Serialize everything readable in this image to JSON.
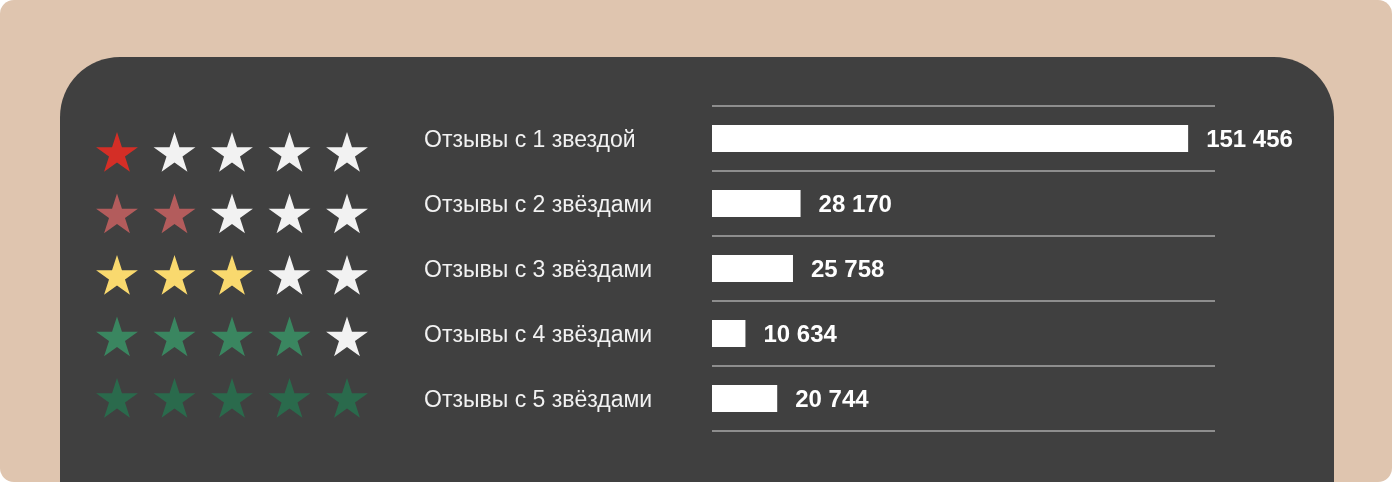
{
  "chart_data": {
    "type": "bar",
    "orientation": "horizontal",
    "categories": [
      "Отзывы с 1 звездой",
      "Отзывы с 2 звёздами",
      "Отзывы с 3 звёздами",
      "Отзывы с 4 звёздами",
      "Отзывы с 5 звёздами"
    ],
    "values": [
      151456,
      28170,
      25758,
      10634,
      20744
    ],
    "color": "#ffffff",
    "value_labels": [
      "151 456",
      "28 170",
      "25 758",
      "10 634",
      "20 744"
    ],
    "xlim": [
      0,
      160000
    ],
    "grid": "y",
    "tick_labels": "y"
  }
}
